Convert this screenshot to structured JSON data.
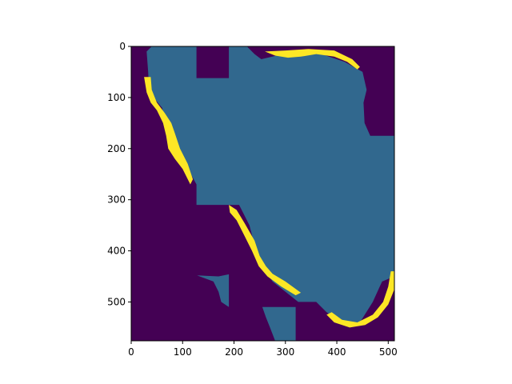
{
  "chart_data": {
    "type": "heatmap",
    "title": "",
    "xlabel": "",
    "ylabel": "",
    "xlim": [
      0,
      512
    ],
    "ylim": [
      576,
      0
    ],
    "x_ticks": [
      "0",
      "100",
      "200",
      "300",
      "400",
      "500"
    ],
    "y_ticks": [
      "0",
      "100",
      "200",
      "300",
      "400",
      "500"
    ],
    "colormap": "viridis",
    "class_colors": {
      "background": "#440154",
      "land": "#31688e",
      "coastline": "#fde725"
    },
    "regions": [
      {
        "class": "land",
        "polygon": [
          [
            40,
            0
          ],
          [
            127,
            0
          ],
          [
            127,
            62
          ],
          [
            190,
            62
          ],
          [
            190,
            0
          ],
          [
            225,
            0
          ],
          [
            240,
            15
          ],
          [
            253,
            25
          ],
          [
            300,
            14
          ],
          [
            355,
            10
          ],
          [
            415,
            30
          ],
          [
            450,
            50
          ],
          [
            458,
            85
          ],
          [
            452,
            110
          ],
          [
            454,
            150
          ],
          [
            465,
            175
          ],
          [
            512,
            175
          ],
          [
            512,
            450
          ],
          [
            488,
            460
          ],
          [
            470,
            500
          ],
          [
            445,
            540
          ],
          [
            420,
            546
          ],
          [
            380,
            520
          ],
          [
            360,
            500
          ],
          [
            325,
            500
          ],
          [
            275,
            460
          ],
          [
            248,
            420
          ],
          [
            230,
            350
          ],
          [
            210,
            310
          ],
          [
            190,
            310
          ],
          [
            127,
            310
          ],
          [
            127,
            270
          ],
          [
            105,
            230
          ],
          [
            75,
            200
          ],
          [
            70,
            160
          ],
          [
            60,
            120
          ],
          [
            35,
            90
          ],
          [
            33,
            50
          ],
          [
            30,
            10
          ]
        ]
      },
      {
        "class": "land",
        "polygon": [
          [
            255,
            510
          ],
          [
            320,
            510
          ],
          [
            320,
            576
          ],
          [
            280,
            576
          ],
          [
            270,
            550
          ],
          [
            262,
            530
          ]
        ]
      },
      {
        "class": "land",
        "polygon": [
          [
            128,
            448
          ],
          [
            170,
            450
          ],
          [
            190,
            446
          ],
          [
            190,
            510
          ],
          [
            175,
            500
          ],
          [
            170,
            480
          ],
          [
            160,
            460
          ]
        ]
      },
      {
        "class": "coastline",
        "polygon": [
          [
            25,
            60
          ],
          [
            38,
            60
          ],
          [
            40,
            85
          ],
          [
            50,
            110
          ],
          [
            65,
            130
          ],
          [
            78,
            150
          ],
          [
            85,
            170
          ],
          [
            95,
            200
          ],
          [
            110,
            230
          ],
          [
            120,
            260
          ],
          [
            115,
            270
          ],
          [
            100,
            240
          ],
          [
            85,
            220
          ],
          [
            72,
            200
          ],
          [
            68,
            175
          ],
          [
            62,
            150
          ],
          [
            50,
            125
          ],
          [
            38,
            110
          ],
          [
            30,
            90
          ]
        ]
      },
      {
        "class": "coastline",
        "polygon": [
          [
            260,
            10
          ],
          [
            300,
            8
          ],
          [
            345,
            5
          ],
          [
            395,
            8
          ],
          [
            430,
            25
          ],
          [
            445,
            40
          ],
          [
            440,
            45
          ],
          [
            420,
            30
          ],
          [
            395,
            20
          ],
          [
            360,
            15
          ],
          [
            330,
            20
          ],
          [
            305,
            22
          ],
          [
            280,
            18
          ]
        ]
      },
      {
        "class": "coastline",
        "polygon": [
          [
            505,
            440
          ],
          [
            512,
            440
          ],
          [
            512,
            475
          ],
          [
            500,
            505
          ],
          [
            480,
            530
          ],
          [
            455,
            545
          ],
          [
            425,
            550
          ],
          [
            395,
            540
          ],
          [
            380,
            525
          ],
          [
            390,
            520
          ],
          [
            410,
            535
          ],
          [
            440,
            540
          ],
          [
            470,
            525
          ],
          [
            490,
            500
          ],
          [
            500,
            470
          ]
        ]
      },
      {
        "class": "coastline",
        "polygon": [
          [
            190,
            310
          ],
          [
            205,
            320
          ],
          [
            220,
            345
          ],
          [
            240,
            380
          ],
          [
            250,
            410
          ],
          [
            262,
            430
          ],
          [
            275,
            445
          ],
          [
            300,
            460
          ],
          [
            330,
            482
          ],
          [
            320,
            487
          ],
          [
            292,
            470
          ],
          [
            265,
            450
          ],
          [
            248,
            430
          ],
          [
            235,
            400
          ],
          [
            220,
            370
          ],
          [
            205,
            340
          ],
          [
            192,
            325
          ]
        ]
      }
    ]
  }
}
